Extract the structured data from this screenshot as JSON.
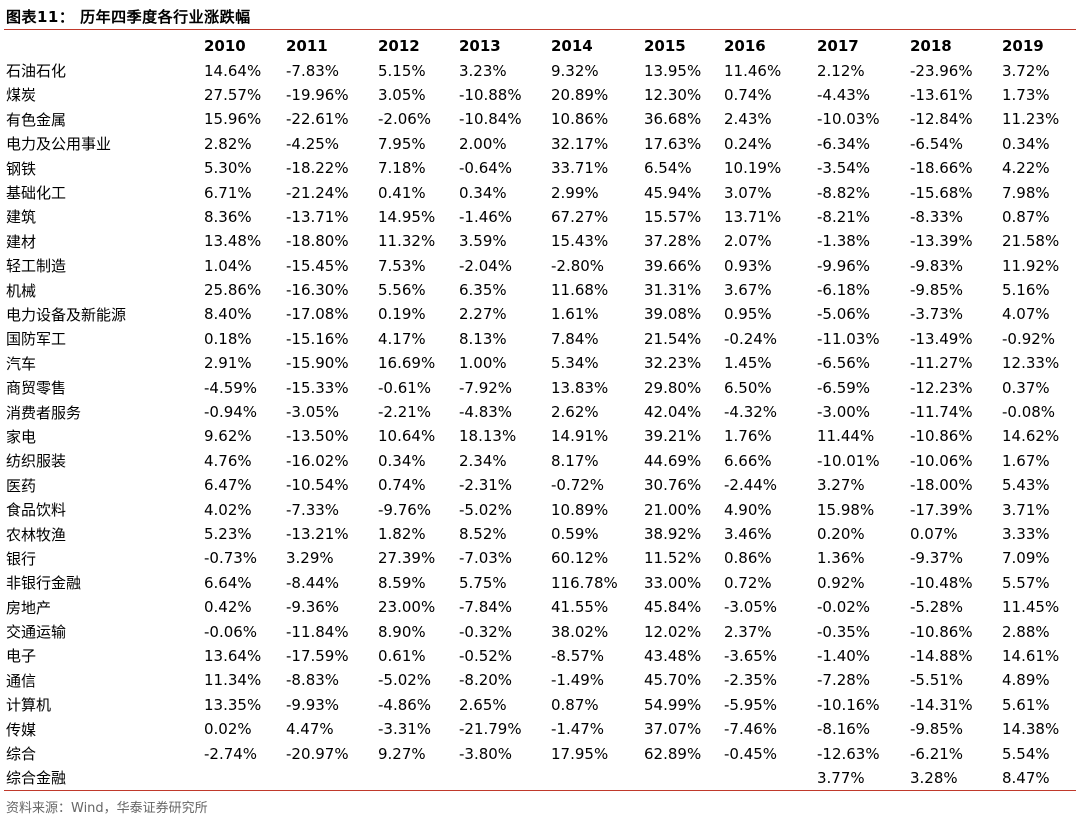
{
  "title": "图表11： 历年四季度各行业涨跌幅",
  "table": {
    "years": [
      "2010",
      "2011",
      "2012",
      "2013",
      "2014",
      "2015",
      "2016",
      "2017",
      "2018",
      "2019"
    ],
    "rows": [
      {
        "name": "石油石化",
        "values": [
          "14.64%",
          "-7.83%",
          "5.15%",
          "3.23%",
          "9.32%",
          "13.95%",
          "11.46%",
          "2.12%",
          "-23.96%",
          "3.72%"
        ]
      },
      {
        "name": "煤炭",
        "values": [
          "27.57%",
          "-19.96%",
          "3.05%",
          "-10.88%",
          "20.89%",
          "12.30%",
          "0.74%",
          "-4.43%",
          "-13.61%",
          "1.73%"
        ]
      },
      {
        "name": "有色金属",
        "values": [
          "15.96%",
          "-22.61%",
          "-2.06%",
          "-10.84%",
          "10.86%",
          "36.68%",
          "2.43%",
          "-10.03%",
          "-12.84%",
          "11.23%"
        ]
      },
      {
        "name": "电力及公用事业",
        "values": [
          "2.82%",
          "-4.25%",
          "7.95%",
          "2.00%",
          "32.17%",
          "17.63%",
          "0.24%",
          "-6.34%",
          "-6.54%",
          "0.34%"
        ]
      },
      {
        "name": "钢铁",
        "values": [
          "5.30%",
          "-18.22%",
          "7.18%",
          "-0.64%",
          "33.71%",
          "6.54%",
          "10.19%",
          "-3.54%",
          "-18.66%",
          "4.22%"
        ]
      },
      {
        "name": "基础化工",
        "values": [
          "6.71%",
          "-21.24%",
          "0.41%",
          "0.34%",
          "2.99%",
          "45.94%",
          "3.07%",
          "-8.82%",
          "-15.68%",
          "7.98%"
        ]
      },
      {
        "name": "建筑",
        "values": [
          "8.36%",
          "-13.71%",
          "14.95%",
          "-1.46%",
          "67.27%",
          "15.57%",
          "13.71%",
          "-8.21%",
          "-8.33%",
          "0.87%"
        ]
      },
      {
        "name": "建材",
        "values": [
          "13.48%",
          "-18.80%",
          "11.32%",
          "3.59%",
          "15.43%",
          "37.28%",
          "2.07%",
          "-1.38%",
          "-13.39%",
          "21.58%"
        ]
      },
      {
        "name": "轻工制造",
        "values": [
          "1.04%",
          "-15.45%",
          "7.53%",
          "-2.04%",
          "-2.80%",
          "39.66%",
          "0.93%",
          "-9.96%",
          "-9.83%",
          "11.92%"
        ]
      },
      {
        "name": "机械",
        "values": [
          "25.86%",
          "-16.30%",
          "5.56%",
          "6.35%",
          "11.68%",
          "31.31%",
          "3.67%",
          "-6.18%",
          "-9.85%",
          "5.16%"
        ]
      },
      {
        "name": "电力设备及新能源",
        "values": [
          "8.40%",
          "-17.08%",
          "0.19%",
          "2.27%",
          "1.61%",
          "39.08%",
          "0.95%",
          "-5.06%",
          "-3.73%",
          "4.07%"
        ]
      },
      {
        "name": "国防军工",
        "values": [
          "0.18%",
          "-15.16%",
          "4.17%",
          "8.13%",
          "7.84%",
          "21.54%",
          "-0.24%",
          "-11.03%",
          "-13.49%",
          "-0.92%"
        ]
      },
      {
        "name": "汽车",
        "values": [
          "2.91%",
          "-15.90%",
          "16.69%",
          "1.00%",
          "5.34%",
          "32.23%",
          "1.45%",
          "-6.56%",
          "-11.27%",
          "12.33%"
        ]
      },
      {
        "name": "商贸零售",
        "values": [
          "-4.59%",
          "-15.33%",
          "-0.61%",
          "-7.92%",
          "13.83%",
          "29.80%",
          "6.50%",
          "-6.59%",
          "-12.23%",
          "0.37%"
        ]
      },
      {
        "name": "消费者服务",
        "values": [
          "-0.94%",
          "-3.05%",
          "-2.21%",
          "-4.83%",
          "2.62%",
          "42.04%",
          "-4.32%",
          "-3.00%",
          "-11.74%",
          "-0.08%"
        ]
      },
      {
        "name": "家电",
        "values": [
          "9.62%",
          "-13.50%",
          "10.64%",
          "18.13%",
          "14.91%",
          "39.21%",
          "1.76%",
          "11.44%",
          "-10.86%",
          "14.62%"
        ]
      },
      {
        "name": "纺织服装",
        "values": [
          "4.76%",
          "-16.02%",
          "0.34%",
          "2.34%",
          "8.17%",
          "44.69%",
          "6.66%",
          "-10.01%",
          "-10.06%",
          "1.67%"
        ]
      },
      {
        "name": "医药",
        "values": [
          "6.47%",
          "-10.54%",
          "0.74%",
          "-2.31%",
          "-0.72%",
          "30.76%",
          "-2.44%",
          "3.27%",
          "-18.00%",
          "5.43%"
        ]
      },
      {
        "name": "食品饮料",
        "values": [
          "4.02%",
          "-7.33%",
          "-9.76%",
          "-5.02%",
          "10.89%",
          "21.00%",
          "4.90%",
          "15.98%",
          "-17.39%",
          "3.71%"
        ]
      },
      {
        "name": "农林牧渔",
        "values": [
          "5.23%",
          "-13.21%",
          "1.82%",
          "8.52%",
          "0.59%",
          "38.92%",
          "3.46%",
          "0.20%",
          "0.07%",
          "3.33%"
        ]
      },
      {
        "name": "银行",
        "values": [
          "-0.73%",
          "3.29%",
          "27.39%",
          "-7.03%",
          "60.12%",
          "11.52%",
          "0.86%",
          "1.36%",
          "-9.37%",
          "7.09%"
        ]
      },
      {
        "name": "非银行金融",
        "values": [
          "6.64%",
          "-8.44%",
          "8.59%",
          "5.75%",
          "116.78%",
          "33.00%",
          "0.72%",
          "0.92%",
          "-10.48%",
          "5.57%"
        ]
      },
      {
        "name": "房地产",
        "values": [
          "0.42%",
          "-9.36%",
          "23.00%",
          "-7.84%",
          "41.55%",
          "45.84%",
          "-3.05%",
          "-0.02%",
          "-5.28%",
          "11.45%"
        ]
      },
      {
        "name": "交通运输",
        "values": [
          "-0.06%",
          "-11.84%",
          "8.90%",
          "-0.32%",
          "38.02%",
          "12.02%",
          "2.37%",
          "-0.35%",
          "-10.86%",
          "2.88%"
        ]
      },
      {
        "name": "电子",
        "values": [
          "13.64%",
          "-17.59%",
          "0.61%",
          "-0.52%",
          "-8.57%",
          "43.48%",
          "-3.65%",
          "-1.40%",
          "-14.88%",
          "14.61%"
        ]
      },
      {
        "name": "通信",
        "values": [
          "11.34%",
          "-8.83%",
          "-5.02%",
          "-8.20%",
          "-1.49%",
          "45.70%",
          "-2.35%",
          "-7.28%",
          "-5.51%",
          "4.89%"
        ]
      },
      {
        "name": "计算机",
        "values": [
          "13.35%",
          "-9.93%",
          "-4.86%",
          "2.65%",
          "0.87%",
          "54.99%",
          "-5.95%",
          "-10.16%",
          "-14.31%",
          "5.61%"
        ]
      },
      {
        "name": "传媒",
        "values": [
          "0.02%",
          "4.47%",
          "-3.31%",
          "-21.79%",
          "-1.47%",
          "37.07%",
          "-7.46%",
          "-8.16%",
          "-9.85%",
          "14.38%"
        ]
      },
      {
        "name": "综合",
        "values": [
          "-2.74%",
          "-20.97%",
          "9.27%",
          "-3.80%",
          "17.95%",
          "62.89%",
          "-0.45%",
          "-12.63%",
          "-6.21%",
          "5.54%"
        ]
      },
      {
        "name": "综合金融",
        "values": [
          "",
          "",
          "",
          "",
          "",
          "",
          "",
          "3.77%",
          "3.28%",
          "8.47%"
        ]
      }
    ]
  },
  "source": "资料来源：Wind，华泰证券研究所",
  "colors": {
    "rule": "#c0392b",
    "source_text": "#666666"
  }
}
